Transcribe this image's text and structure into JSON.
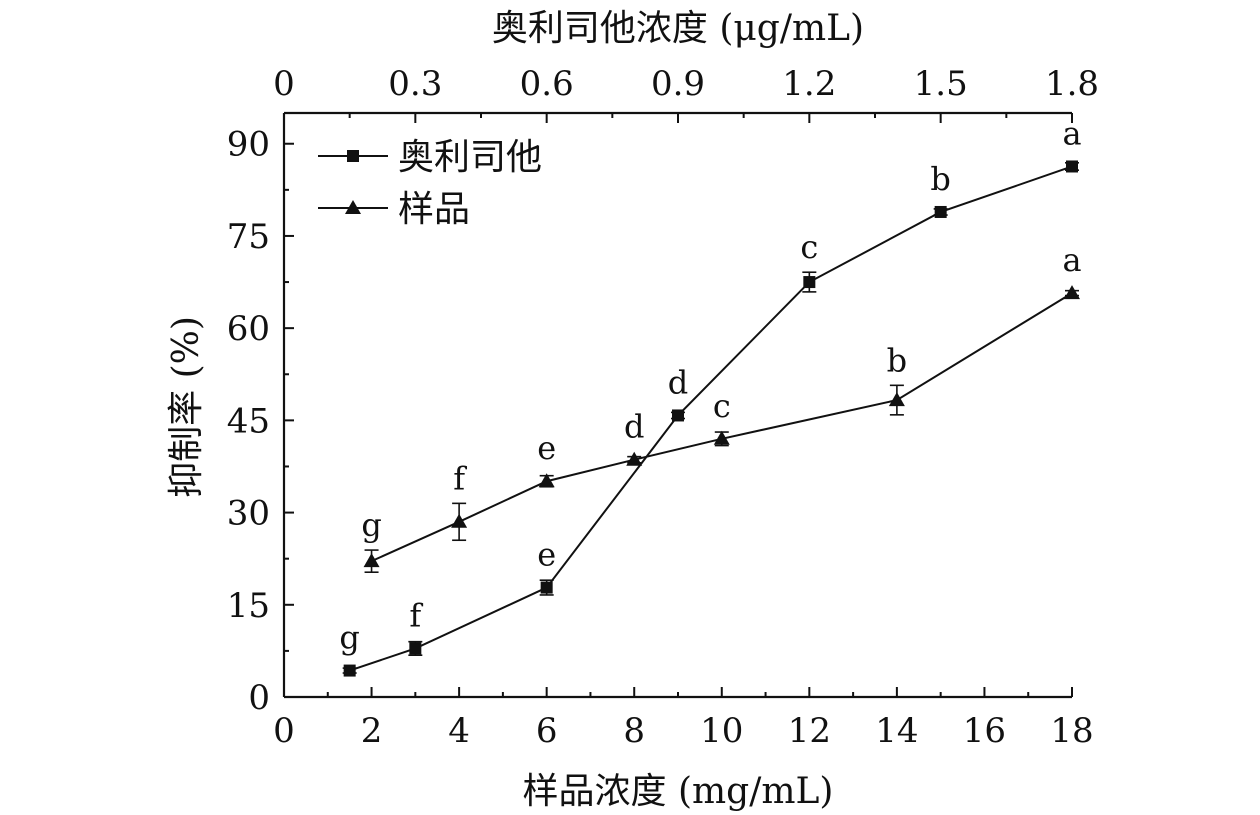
{
  "chart_data": {
    "type": "line",
    "title": "",
    "xlabel": "样品浓度 (mg/mL)",
    "x2label": "奥利司他浓度 (μg/mL)",
    "ylabel": "抑制率 (%)",
    "xlim": [
      0,
      18
    ],
    "x2lim": [
      0,
      1.8
    ],
    "ylim": [
      0,
      95
    ],
    "x_ticks_major": [
      "0",
      "2",
      "4",
      "6",
      "8",
      "10",
      "12",
      "14",
      "16",
      "18"
    ],
    "x2_ticks": [
      "0",
      "0.3",
      "0.6",
      "0.9",
      "1.2",
      "1.5",
      "1.8"
    ],
    "y_ticks": [
      "0",
      "15",
      "30",
      "45",
      "60",
      "75",
      "90"
    ],
    "grid": false,
    "legend_position": "top-left",
    "series": [
      {
        "name": "奥利司他",
        "marker": "square",
        "axis": "top",
        "x": [
          0.15,
          0.3,
          0.6,
          0.9,
          1.2,
          1.5,
          1.8
        ],
        "values": [
          4.3,
          7.9,
          17.8,
          45.8,
          67.5,
          78.9,
          86.3
        ],
        "errors": [
          0.4,
          1.1,
          1.2,
          0.5,
          1.6,
          0.5,
          0.6
        ],
        "labels": [
          "g",
          "f",
          "e",
          "d",
          "c",
          "b",
          "a"
        ]
      },
      {
        "name": "样品",
        "marker": "triangle",
        "axis": "bottom",
        "x": [
          2,
          4,
          6,
          8,
          10,
          14,
          18
        ],
        "values": [
          22.1,
          28.5,
          35.1,
          38.6,
          42.0,
          48.3,
          65.7
        ],
        "errors": [
          1.8,
          3.0,
          0.9,
          0.5,
          1.1,
          2.4,
          0.4
        ],
        "labels": [
          "g",
          "f",
          "e",
          "d",
          "c",
          "b",
          "a"
        ]
      }
    ]
  }
}
